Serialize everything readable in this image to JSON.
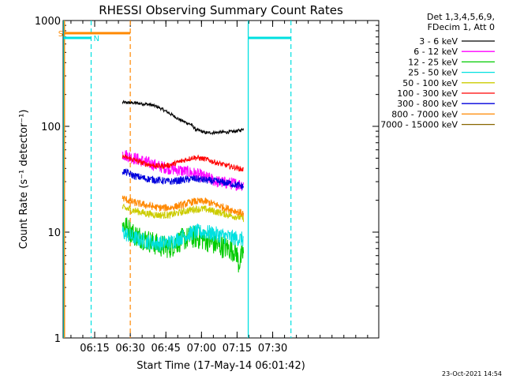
{
  "chart_data": {
    "type": "line",
    "title": "RHESSI Observing Summary Count Rates",
    "ylabel": "Count Rate (s⁻¹ detector⁻¹)",
    "xlabel": "Start Time (17-May-14 06:01:42)",
    "footer": "23-Oct-2021 14:54",
    "yscale": "log",
    "ylim": [
      1,
      1000
    ],
    "xlim_min": [
      0,
      133
    ],
    "yticks": [
      {
        "value": 1,
        "label": "1"
      },
      {
        "value": 10,
        "label": "10"
      },
      {
        "value": 100,
        "label": "100"
      },
      {
        "value": 1000,
        "label": "1000"
      }
    ],
    "xticks": [
      {
        "value": 13.3,
        "label": "06:15"
      },
      {
        "value": 28.3,
        "label": "06:30"
      },
      {
        "value": 43.3,
        "label": "06:45"
      },
      {
        "value": 58.3,
        "label": "07:00"
      },
      {
        "value": 73.3,
        "label": "07:15"
      },
      {
        "value": 88.3,
        "label": "07:30"
      }
    ],
    "legend_header": [
      "Det 1,3,4,5,6,9,",
      "FDecim 1, Att 0"
    ],
    "series": [
      {
        "name": "3 - 6 keV",
        "color": "#000000",
        "x": [
          25,
          31,
          37,
          40,
          43,
          46,
          49,
          52,
          54,
          56,
          58,
          60,
          63,
          66,
          69,
          71,
          73,
          75,
          76
        ],
        "y": [
          168,
          166,
          160,
          152,
          140,
          128,
          116,
          108,
          104,
          93,
          90,
          87,
          87,
          88,
          88,
          89,
          90,
          92,
          95
        ]
      },
      {
        "name": "6 - 12 keV",
        "color": "#ff00ff",
        "x": [
          25,
          30,
          35,
          40,
          45,
          50,
          55,
          60,
          65,
          70,
          76
        ],
        "y": [
          55,
          50,
          46,
          42,
          40,
          38,
          36,
          33,
          30,
          29,
          28
        ]
      },
      {
        "name": "12 - 25 keV",
        "color": "#00cc00",
        "x": [
          25,
          30,
          35,
          40,
          45,
          50,
          55,
          60,
          65,
          70,
          73,
          74,
          76
        ],
        "y": [
          12,
          9.5,
          8.5,
          7.5,
          7.2,
          8.5,
          9,
          8.5,
          7.5,
          7,
          6.5,
          5,
          6.5
        ]
      },
      {
        "name": "25 - 50 keV",
        "color": "#00e0e0",
        "x": [
          25,
          30,
          35,
          40,
          45,
          50,
          55,
          60,
          65,
          70,
          76
        ],
        "y": [
          10,
          8.8,
          8.2,
          7.8,
          8,
          9,
          10,
          10,
          9.5,
          9,
          8.5
        ]
      },
      {
        "name": "50 - 100 keV",
        "color": "#cccc00",
        "x": [
          25,
          30,
          35,
          40,
          45,
          50,
          55,
          60,
          65,
          70,
          76
        ],
        "y": [
          17,
          16,
          15,
          14.5,
          14.5,
          15.5,
          16.5,
          16.5,
          15.5,
          14.5,
          13.5
        ]
      },
      {
        "name": "100 - 300 keV",
        "color": "#ff0000",
        "x": [
          25,
          30,
          35,
          40,
          45,
          50,
          55,
          60,
          65,
          70,
          76
        ],
        "y": [
          52,
          48,
          44,
          42,
          43,
          47,
          51,
          49,
          45,
          42,
          39
        ]
      },
      {
        "name": "300 - 800 keV",
        "color": "#0000dd",
        "x": [
          25,
          30,
          35,
          40,
          45,
          50,
          55,
          60,
          65,
          70,
          76
        ],
        "y": [
          38,
          34,
          32,
          31,
          30,
          31,
          32,
          31,
          30,
          29,
          27
        ]
      },
      {
        "name": "800 - 7000 keV",
        "color": "#ff8800",
        "x": [
          25,
          30,
          35,
          40,
          45,
          50,
          55,
          60,
          65,
          70,
          76
        ],
        "y": [
          21,
          19,
          18,
          17,
          17,
          18,
          19.5,
          19.5,
          18,
          16.5,
          15
        ]
      },
      {
        "name": "7000 - 15000 keV",
        "color": "#886600",
        "x": [],
        "y": []
      }
    ],
    "flags": [
      {
        "label": "S",
        "color": "#ff8800",
        "x_start": 0.6,
        "x_end": 28.3
      },
      {
        "label": "N",
        "color": "#00e0e0",
        "x_start": 0.3,
        "x_end": 11.8
      }
    ],
    "flags_after": [
      {
        "color": "#00e0e0",
        "x_start": 78,
        "x_end": 96
      }
    ],
    "solid_vlines": [
      {
        "x": 0.3,
        "color": "#00e0e0"
      },
      {
        "x": 0.6,
        "color": "#ff8800"
      },
      {
        "x": 78,
        "color": "#00e0e0"
      }
    ],
    "dashed_vlines": [
      {
        "x": 11.8,
        "color": "#00e0e0"
      },
      {
        "x": 28.3,
        "color": "#ff8800"
      },
      {
        "x": 96,
        "color": "#00e0e0"
      }
    ]
  }
}
